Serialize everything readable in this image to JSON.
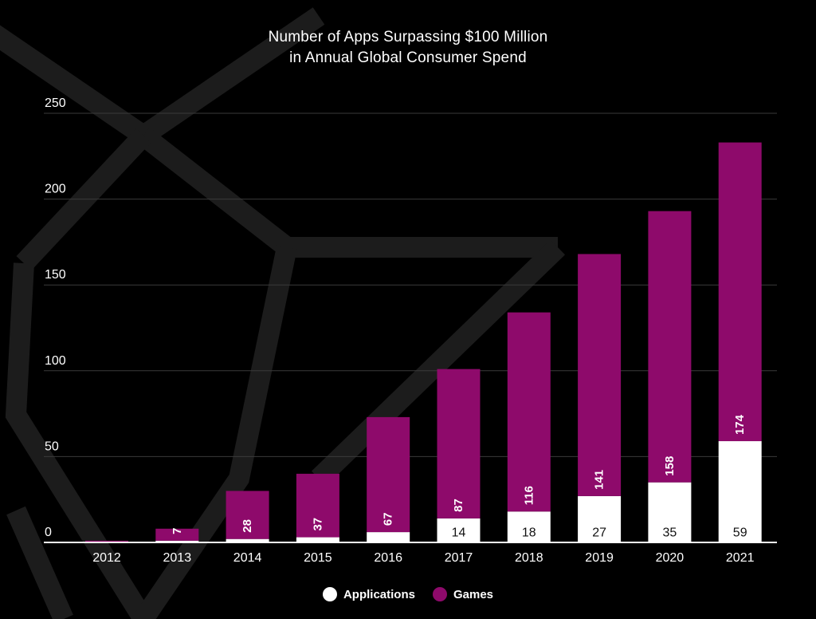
{
  "chart_data": {
    "type": "bar",
    "stacked": true,
    "title": "Number of Apps Surpassing $100 Million",
    "subtitle": "in Annual Global Consumer Spend",
    "xlabel": "",
    "ylabel": "",
    "ylim": [
      0,
      250
    ],
    "yticks": [
      0,
      50,
      100,
      150,
      200,
      250
    ],
    "grid": true,
    "legend_position": "bottom",
    "categories": [
      "2012",
      "2013",
      "2014",
      "2015",
      "2016",
      "2017",
      "2018",
      "2019",
      "2020",
      "2021"
    ],
    "series": [
      {
        "name": "Applications",
        "color": "#ffffff",
        "values": [
          0,
          1,
          2,
          3,
          6,
          14,
          18,
          27,
          35,
          59
        ],
        "labels": [
          "",
          "",
          "",
          "",
          "",
          "14",
          "18",
          "27",
          "35",
          "59"
        ]
      },
      {
        "name": "Games",
        "color": "#8e0a6b",
        "values": [
          1,
          7,
          28,
          37,
          67,
          87,
          116,
          141,
          158,
          174
        ],
        "labels": [
          "",
          "7",
          "28",
          "37",
          "67",
          "87",
          "116",
          "141",
          "158",
          "174"
        ]
      }
    ]
  }
}
